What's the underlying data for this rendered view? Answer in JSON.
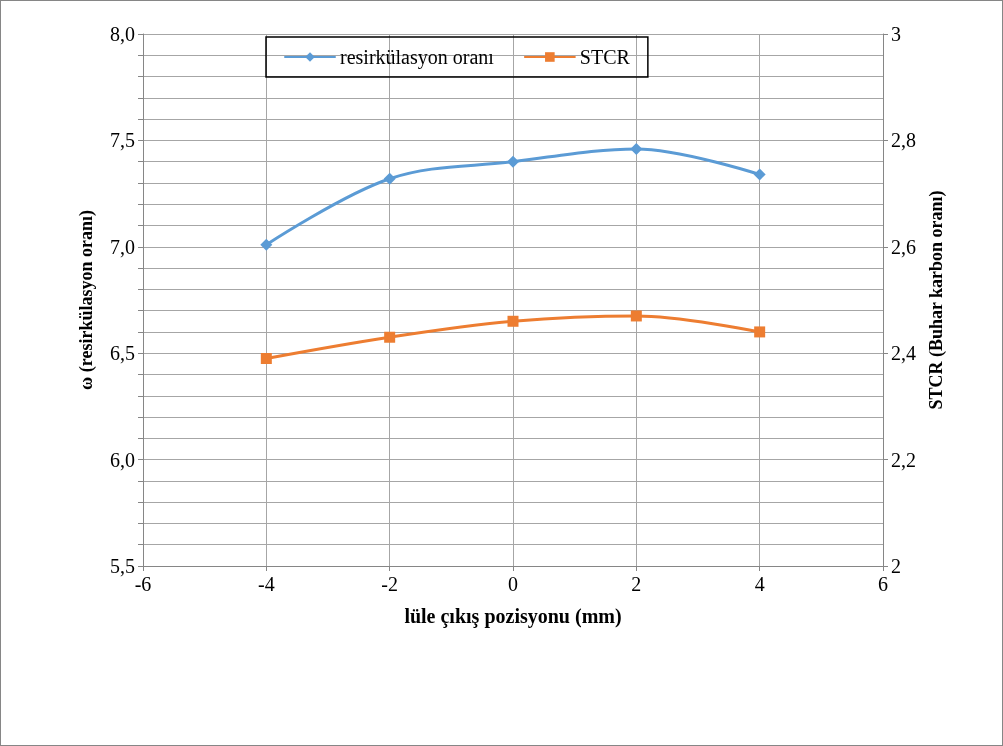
{
  "chart_data": {
    "type": "line",
    "xlabel": "lüle çıkış pozisyonu (mm)",
    "ylabel": "ω (resirkülasyon oranı)",
    "y2label": "STCR (Buhar karbon oranı)",
    "x": [
      -4,
      -2,
      0,
      2,
      4
    ],
    "series": [
      {
        "name": "resirkülasyon oranı",
        "color": "#5b9bd5",
        "marker": "diamond",
        "values": [
          7.01,
          7.32,
          7.4,
          7.46,
          7.34
        ]
      },
      {
        "name": "STCR",
        "color": "#ed7d31",
        "marker": "square",
        "axis": "y2",
        "values": [
          2.39,
          2.43,
          2.46,
          2.47,
          2.44
        ]
      }
    ],
    "xlim": [
      -6,
      6
    ],
    "xticks": [
      -6,
      -4,
      -2,
      0,
      2,
      4,
      6
    ],
    "ylim": [
      5.5,
      8.0
    ],
    "yticks": [
      {
        "value": 5.5,
        "label": "5,5"
      },
      {
        "value": 5.6,
        "label": null
      },
      {
        "value": 5.7,
        "label": null
      },
      {
        "value": 5.8,
        "label": null
      },
      {
        "value": 5.9,
        "label": null
      },
      {
        "value": 6.0,
        "label": "6,0"
      },
      {
        "value": 6.1,
        "label": null
      },
      {
        "value": 6.2,
        "label": null
      },
      {
        "value": 6.3,
        "label": null
      },
      {
        "value": 6.4,
        "label": null
      },
      {
        "value": 6.5,
        "label": "6,5"
      },
      {
        "value": 6.6,
        "label": null
      },
      {
        "value": 6.7,
        "label": null
      },
      {
        "value": 6.8,
        "label": null
      },
      {
        "value": 6.9,
        "label": null
      },
      {
        "value": 7.0,
        "label": "7,0"
      },
      {
        "value": 7.1,
        "label": null
      },
      {
        "value": 7.2,
        "label": null
      },
      {
        "value": 7.3,
        "label": null
      },
      {
        "value": 7.4,
        "label": null
      },
      {
        "value": 7.5,
        "label": "7,5"
      },
      {
        "value": 7.6,
        "label": null
      },
      {
        "value": 7.7,
        "label": null
      },
      {
        "value": 7.8,
        "label": null
      },
      {
        "value": 7.9,
        "label": null
      },
      {
        "value": 8.0,
        "label": "8,0"
      }
    ],
    "y2lim": [
      2,
      3
    ],
    "y2ticks": [
      2,
      {
        "value": 2.2,
        "label": "2,2"
      },
      {
        "value": 2.4,
        "label": "2,4"
      },
      {
        "value": 2.6,
        "label": "2,6"
      },
      {
        "value": 2.8,
        "label": "2,8"
      },
      3
    ],
    "grid": true,
    "legend": "top",
    "line_style": "solid"
  }
}
